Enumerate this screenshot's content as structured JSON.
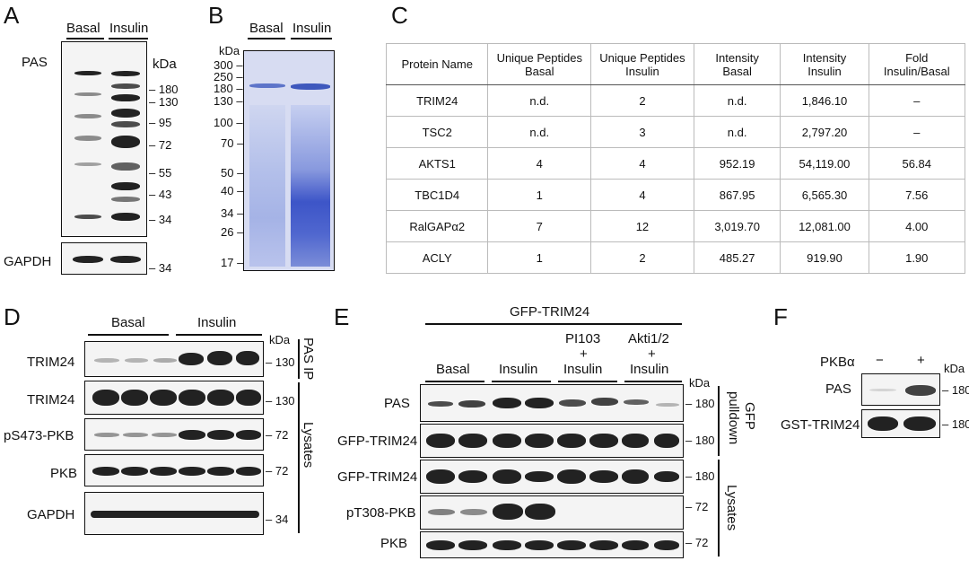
{
  "panel_labels": {
    "a": "A",
    "b": "B",
    "c": "C",
    "d": "D",
    "e": "E",
    "f": "F"
  },
  "panelA": {
    "lanes": [
      "Basal",
      "Insulin"
    ],
    "blot1": "PAS",
    "blot2": "GAPDH",
    "kda": "kDa",
    "markers": [
      "180",
      "130",
      "95",
      "72",
      "55",
      "43",
      "34"
    ],
    "marker2": "34"
  },
  "panelB": {
    "lanes": [
      "Basal",
      "Insulin"
    ],
    "kda": "kDa",
    "markers": [
      "300",
      "250",
      "180",
      "130",
      "100",
      "70",
      "50",
      "40",
      "34",
      "26",
      "17"
    ]
  },
  "panelC": {
    "headers": [
      [
        "Protein Name"
      ],
      [
        "Unique Peptides",
        "Basal"
      ],
      [
        "Unique Peptides",
        "Insulin"
      ],
      [
        "Intensity",
        "Basal"
      ],
      [
        "Intensity",
        "Insulin"
      ],
      [
        "Fold",
        "Insulin/Basal"
      ]
    ],
    "rows": [
      [
        "TRIM24",
        "n.d.",
        "2",
        "n.d.",
        "1,846.10",
        "–"
      ],
      [
        "TSC2",
        "n.d.",
        "3",
        "n.d.",
        "2,797.20",
        "–"
      ],
      [
        "AKTS1",
        "4",
        "4",
        "952.19",
        "54,119.00",
        "56.84"
      ],
      [
        "TBC1D4",
        "1",
        "4",
        "867.95",
        "6,565.30",
        "7.56"
      ],
      [
        "RalGAPα2",
        "7",
        "12",
        "3,019.70",
        "12,081.00",
        "4.00"
      ],
      [
        "ACLY",
        "1",
        "2",
        "485.27",
        "919.90",
        "1.90"
      ]
    ]
  },
  "panelD": {
    "groups": [
      "Basal",
      "Insulin"
    ],
    "kda": "kDa",
    "blots": [
      "TRIM24",
      "TRIM24",
      "pS473-PKB",
      "PKB",
      "GAPDH"
    ],
    "markers": [
      "130",
      "130",
      "72",
      "72",
      "34"
    ],
    "side1": "PAS IP",
    "side2": "Lysates"
  },
  "panelE": {
    "top": "GFP-TRIM24",
    "groups": [
      [
        "Basal"
      ],
      [
        "Insulin"
      ],
      [
        "PI103",
        "+",
        "Insulin"
      ],
      [
        "Akti1/2",
        "+",
        "Insulin"
      ]
    ],
    "kda": "kDa",
    "blots": [
      "PAS",
      "GFP-TRIM24",
      "GFP-TRIM24",
      "pT308-PKB",
      "PKB"
    ],
    "markers": [
      "180",
      "180",
      "180",
      "72",
      "72"
    ],
    "side1": [
      "GFP",
      "pulldown"
    ],
    "side2": "Lysates"
  },
  "panelF": {
    "header": "PKBα",
    "signs": [
      "−",
      "+"
    ],
    "kda": "kDa",
    "blots": [
      "PAS",
      "GST-TRIM24"
    ],
    "markers": [
      "180",
      "180"
    ]
  }
}
